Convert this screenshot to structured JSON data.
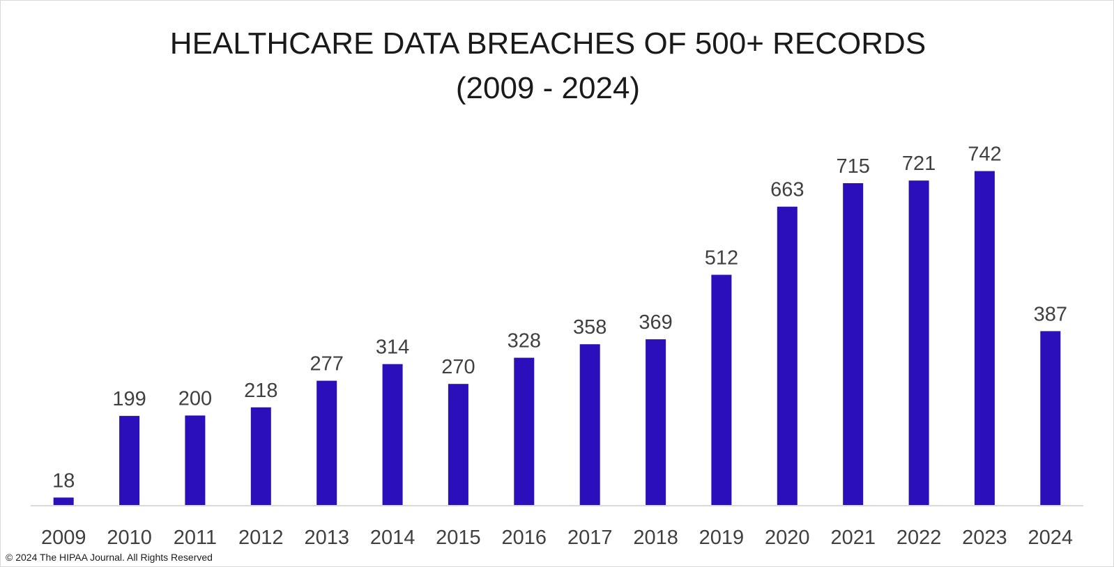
{
  "chart_data": {
    "type": "bar",
    "title": [
      "HEALTHCARE DATA BREACHES OF 500+ RECORDS",
      "(2009 - 2024)"
    ],
    "categories": [
      "2009",
      "2010",
      "2011",
      "2012",
      "2013",
      "2014",
      "2015",
      "2016",
      "2017",
      "2018",
      "2019",
      "2020",
      "2021",
      "2022",
      "2023",
      "2024"
    ],
    "values": [
      18,
      199,
      200,
      218,
      277,
      314,
      270,
      328,
      358,
      369,
      512,
      663,
      715,
      721,
      742,
      387
    ],
    "xlabel": "",
    "ylabel": "",
    "ylim": [
      0,
      800
    ],
    "grid": false,
    "legend": "none",
    "bar_color": "#2a0fba",
    "axis_color": "#d9d9d9"
  },
  "footer": {
    "copyright": "© 2024 The HIPAA Journal. All Rights Reserved"
  }
}
